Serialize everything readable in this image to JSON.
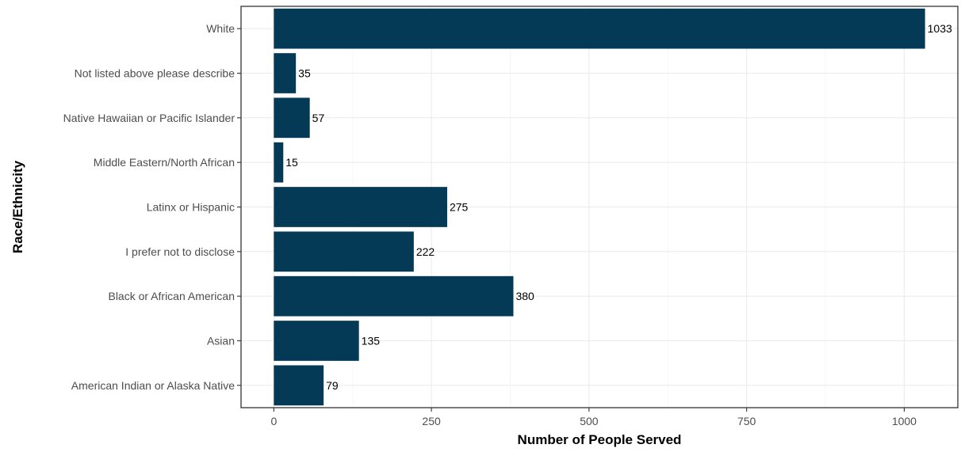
{
  "chart_data": {
    "type": "bar",
    "orientation": "horizontal",
    "categories": [
      "White",
      "Not listed above please describe",
      "Native Hawaiian or Pacific Islander",
      "Middle Eastern/North African",
      "Latinx or Hispanic",
      "I prefer not to disclose",
      "Black or African American",
      "Asian",
      "American Indian or Alaska Native"
    ],
    "values": [
      1033,
      35,
      57,
      15,
      275,
      222,
      380,
      135,
      79
    ],
    "data_labels": [
      "1033",
      "35",
      "57",
      "15",
      "275",
      "222",
      "380",
      "135",
      "79"
    ],
    "xlabel": "Number of People Served",
    "ylabel": "Race/Ethnicity",
    "xlim": [
      -52,
      1085
    ],
    "x_ticks": [
      0,
      250,
      500,
      750,
      1000
    ],
    "x_tick_labels": [
      "0",
      "250",
      "500",
      "750",
      "1000"
    ],
    "grid": true,
    "bar_color": "#053a56",
    "legend": "none"
  }
}
